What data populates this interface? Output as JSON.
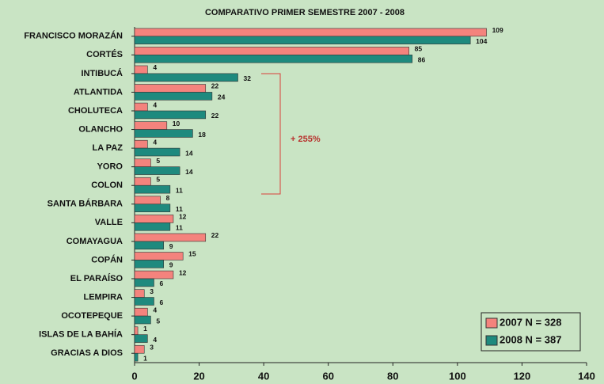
{
  "chart_data": {
    "type": "bar",
    "orientation": "horizontal",
    "title": "COMPARATIVO PRIMER SEMESTRE 2007 - 2008",
    "categories": [
      "FRANCISCO MORAZÁN",
      "CORTÉS",
      "INTIBUCÁ",
      "ATLANTIDA",
      "CHOLUTECA",
      "OLANCHO",
      "LA PAZ",
      "YORO",
      "COLON",
      "SANTA BÁRBARA",
      "VALLE",
      "COMAYAGUA",
      "COPÁN",
      "EL PARAÍSO",
      "LEMPIRA",
      "OCOTEPEQUE",
      "ISLAS DE LA BAHÍA",
      "GRACIAS A DIOS"
    ],
    "series": [
      {
        "name": "2007 N = 328",
        "color": "#f4837d",
        "values": [
          109,
          85,
          4,
          22,
          4,
          10,
          4,
          5,
          5,
          8,
          12,
          22,
          15,
          12,
          3,
          4,
          1,
          3
        ]
      },
      {
        "name": "2008 N = 387",
        "color": "#1e8a7e",
        "values": [
          104,
          86,
          32,
          24,
          22,
          18,
          14,
          14,
          11,
          11,
          11,
          9,
          9,
          6,
          6,
          5,
          4,
          1
        ]
      }
    ],
    "xlim": [
      0,
      140
    ],
    "xticks": [
      0,
      20,
      40,
      60,
      80,
      100,
      120,
      140
    ],
    "annotation": "+ 255%",
    "legend": "lower right"
  }
}
